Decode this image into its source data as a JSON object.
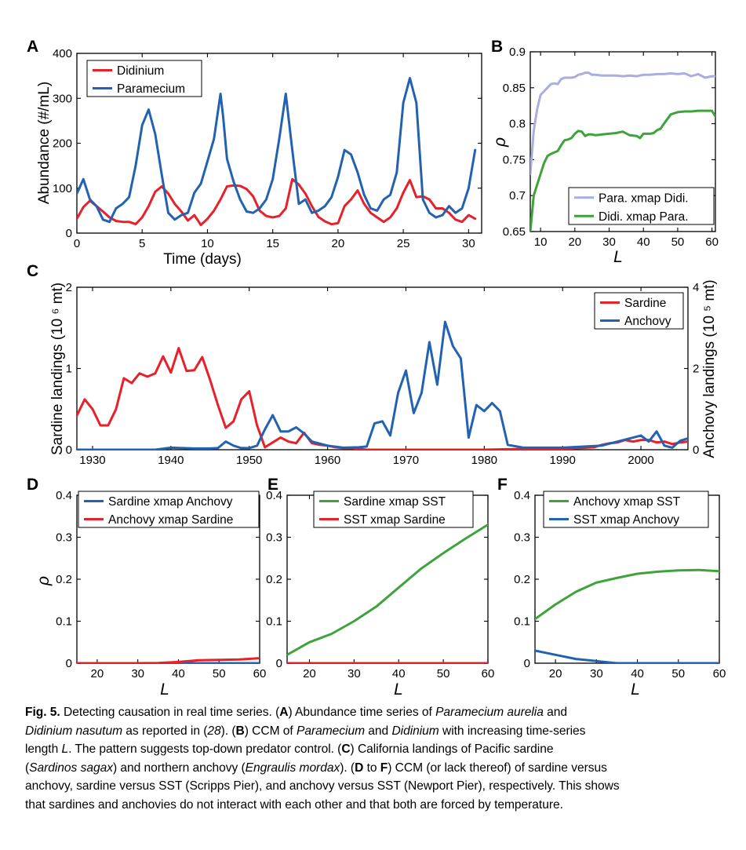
{
  "colors": {
    "red": "#e8202a",
    "blue": "#2262b0",
    "green": "#3ea33a",
    "lavender": "#a9aee0"
  },
  "chart_data": [
    {
      "id": "A",
      "panel_label": "A",
      "type": "line",
      "xlabel": "Time (days)",
      "ylabel": "Abundance (#/mL)",
      "xlim": [
        0,
        31
      ],
      "ylim": [
        0,
        400
      ],
      "xticks": [
        0,
        5,
        10,
        15,
        20,
        25,
        30
      ],
      "yticks": [
        0,
        100,
        200,
        300,
        400
      ],
      "legend_position": "top-left",
      "series": [
        {
          "name": "Didinium",
          "color": "red",
          "x": [
            0,
            0.5,
            1,
            1.5,
            2,
            2.5,
            3,
            3.5,
            4,
            4.5,
            5,
            5.5,
            6,
            6.5,
            7,
            7.5,
            8,
            8.5,
            9,
            9.5,
            10,
            10.5,
            11,
            11.5,
            12,
            12.5,
            13,
            13.5,
            14,
            14.5,
            15,
            15.5,
            16,
            16.5,
            17,
            17.5,
            18,
            18.5,
            19,
            19.5,
            20,
            20.5,
            21,
            21.5,
            22,
            22.5,
            23,
            23.5,
            24,
            24.5,
            25,
            25.5,
            26,
            26.5,
            27,
            27.5,
            28,
            28.5,
            29,
            29.5,
            30,
            30.5
          ],
          "values": [
            32,
            58,
            72,
            60,
            48,
            35,
            27,
            25,
            25,
            20,
            35,
            60,
            92,
            104,
            88,
            65,
            48,
            28,
            40,
            18,
            32,
            50,
            75,
            104,
            106,
            105,
            98,
            82,
            50,
            38,
            35,
            38,
            55,
            120,
            108,
            88,
            60,
            36,
            26,
            20,
            22,
            60,
            75,
            95,
            65,
            45,
            35,
            25,
            35,
            55,
            90,
            118,
            80,
            82,
            75,
            55,
            55,
            45,
            30,
            25,
            40,
            32
          ]
        },
        {
          "name": "Paramecium",
          "color": "blue",
          "x": [
            0,
            0.5,
            1,
            1.5,
            2,
            2.5,
            3,
            3.5,
            4,
            4.5,
            5,
            5.5,
            6,
            6.5,
            7,
            7.5,
            8,
            8.5,
            9,
            9.5,
            10,
            10.5,
            11,
            11.2,
            11.5,
            12,
            12.5,
            13,
            13.5,
            14,
            14.5,
            15,
            15.5,
            16,
            16.5,
            17,
            17.5,
            18,
            18.5,
            19,
            19.5,
            20,
            20.5,
            21,
            21.5,
            22,
            22.5,
            23,
            23.5,
            24,
            24.5,
            25,
            25.5,
            26,
            26.5,
            27,
            27.5,
            28,
            28.5,
            29,
            29.5,
            30,
            30.5
          ],
          "values": [
            88,
            120,
            75,
            60,
            30,
            25,
            55,
            65,
            80,
            150,
            240,
            275,
            220,
            130,
            45,
            30,
            40,
            45,
            90,
            110,
            160,
            210,
            310,
            260,
            165,
            115,
            75,
            48,
            45,
            55,
            75,
            120,
            210,
            310,
            185,
            65,
            75,
            45,
            50,
            60,
            80,
            125,
            185,
            175,
            135,
            85,
            55,
            50,
            75,
            85,
            135,
            290,
            345,
            290,
            75,
            45,
            35,
            40,
            60,
            45,
            55,
            100,
            185
          ]
        }
      ]
    },
    {
      "id": "B",
      "panel_label": "B",
      "type": "line",
      "xlabel": "L",
      "ylabel": "ρ",
      "xlim": [
        7,
        61
      ],
      "ylim": [
        0.65,
        0.9
      ],
      "xticks": [
        10,
        20,
        30,
        40,
        50,
        60
      ],
      "yticks": [
        0.65,
        0.7,
        0.75,
        0.8,
        0.85,
        0.9
      ],
      "ytick_labels": [
        "0.65",
        "0.7",
        "0.75",
        "0.8",
        "0.85",
        "0.9"
      ],
      "legend_position": "bottom-right",
      "series": [
        {
          "name": "Para. xmap Didi.",
          "color": "lavender",
          "x": [
            7,
            8,
            9,
            10,
            11,
            12,
            13,
            14,
            15,
            16,
            17,
            18,
            19,
            20,
            21,
            22,
            23,
            24,
            25,
            26,
            28,
            30,
            32,
            34,
            36,
            38,
            40,
            42,
            44,
            46,
            48,
            50,
            52,
            54,
            56,
            58,
            60,
            61
          ],
          "values": [
            0.73,
            0.79,
            0.82,
            0.84,
            0.845,
            0.85,
            0.855,
            0.856,
            0.855,
            0.862,
            0.864,
            0.864,
            0.864,
            0.865,
            0.868,
            0.869,
            0.871,
            0.871,
            0.868,
            0.868,
            0.867,
            0.867,
            0.867,
            0.866,
            0.867,
            0.866,
            0.868,
            0.868,
            0.869,
            0.869,
            0.87,
            0.869,
            0.87,
            0.866,
            0.869,
            0.864,
            0.866,
            0.866
          ]
        },
        {
          "name": "Didi. xmap Para.",
          "color": "green",
          "x": [
            7,
            8,
            9,
            10,
            11,
            12,
            13,
            14,
            15,
            16,
            17,
            18,
            19,
            20,
            21,
            22,
            23,
            24,
            25,
            26,
            28,
            30,
            32,
            34,
            36,
            38,
            39,
            40,
            41,
            42,
            43,
            44,
            45,
            46,
            48,
            50,
            52,
            54,
            56,
            58,
            60,
            61
          ],
          "values": [
            0.65,
            0.7,
            0.715,
            0.73,
            0.745,
            0.755,
            0.758,
            0.76,
            0.762,
            0.77,
            0.777,
            0.778,
            0.78,
            0.786,
            0.79,
            0.789,
            0.783,
            0.785,
            0.785,
            0.784,
            0.785,
            0.786,
            0.787,
            0.789,
            0.784,
            0.783,
            0.78,
            0.786,
            0.786,
            0.786,
            0.787,
            0.791,
            0.793,
            0.8,
            0.813,
            0.816,
            0.817,
            0.817,
            0.818,
            0.818,
            0.818,
            0.81
          ]
        }
      ]
    },
    {
      "id": "C",
      "panel_label": "C",
      "type": "line",
      "xlabel": "",
      "ylabel": "Sardine landings (10 ⁶ mt)",
      "ylabel_right": "Anchovy landings (10 ⁵ mt)",
      "xlim": [
        1928,
        2006
      ],
      "ylim": [
        0,
        2
      ],
      "ylim_right": [
        0,
        4
      ],
      "xticks": [
        1930,
        1940,
        1950,
        1960,
        1970,
        1980,
        1990,
        2000
      ],
      "yticks": [
        0,
        1,
        2
      ],
      "yticks_right": [
        0,
        2,
        4
      ],
      "legend_position": "top-right",
      "series": [
        {
          "name": "Sardine",
          "color": "red",
          "axis": "left",
          "x": [
            1928,
            1929,
            1930,
            1931,
            1932,
            1933,
            1934,
            1935,
            1936,
            1937,
            1938,
            1939,
            1940,
            1941,
            1942,
            1943,
            1944,
            1945,
            1946,
            1947,
            1948,
            1949,
            1950,
            1951,
            1952,
            1953,
            1954,
            1955,
            1956,
            1957,
            1958,
            1959,
            1960,
            1961,
            1962,
            1963,
            1964,
            1965,
            1966,
            1967,
            1968,
            1969,
            1970,
            1972,
            1974,
            1976,
            1978,
            1980,
            1985,
            1990,
            1992,
            1994,
            1995,
            1996,
            1997,
            1998,
            1999,
            2000,
            2001,
            2002,
            2003,
            2004,
            2005,
            2006
          ],
          "values": [
            0.42,
            0.62,
            0.5,
            0.3,
            0.3,
            0.5,
            0.88,
            0.82,
            0.94,
            0.9,
            0.94,
            1.15,
            0.95,
            1.25,
            0.97,
            0.98,
            1.14,
            0.86,
            0.55,
            0.27,
            0.35,
            0.62,
            0.72,
            0.3,
            0.03,
            0.09,
            0.15,
            0.1,
            0.08,
            0.21,
            0.08,
            0.06,
            0.05,
            0.03,
            0.02,
            0.02,
            0.01,
            0.0,
            0.0,
            0.0,
            0.0,
            0.0,
            0.0,
            0.0,
            0.0,
            0.0,
            0.0,
            0.0,
            0.01,
            0.01,
            0.02,
            0.03,
            0.06,
            0.08,
            0.09,
            0.12,
            0.1,
            0.12,
            0.12,
            0.09,
            0.1,
            0.07,
            0.09,
            0.1
          ]
        },
        {
          "name": "Anchovy",
          "color": "blue",
          "axis": "right",
          "x": [
            1928,
            1935,
            1938,
            1940,
            1943,
            1945,
            1946,
            1947,
            1948,
            1949,
            1950,
            1951,
            1952,
            1953,
            1954,
            1955,
            1956,
            1957,
            1958,
            1960,
            1962,
            1964,
            1965,
            1966,
            1967,
            1968,
            1969,
            1970,
            1971,
            1972,
            1973,
            1974,
            1975,
            1976,
            1977,
            1978,
            1979,
            1980,
            1981,
            1982,
            1983,
            1985,
            1990,
            1995,
            1998,
            2000,
            2001,
            2002,
            2003,
            2004,
            2005,
            2006
          ],
          "values": [
            0,
            0,
            0,
            0.05,
            0.03,
            0.03,
            0.04,
            0.2,
            0.1,
            0.04,
            0.04,
            0.1,
            0.5,
            0.85,
            0.45,
            0.45,
            0.55,
            0.4,
            0.2,
            0.1,
            0.05,
            0.06,
            0.08,
            0.65,
            0.7,
            0.35,
            1.4,
            1.95,
            0.9,
            1.4,
            2.65,
            1.6,
            3.15,
            2.55,
            2.25,
            0.3,
            1.1,
            0.95,
            1.15,
            0.95,
            0.12,
            0.05,
            0.05,
            0.1,
            0.25,
            0.35,
            0.2,
            0.45,
            0.1,
            0.05,
            0.22,
            0.28
          ]
        }
      ]
    },
    {
      "id": "D",
      "panel_label": "D",
      "type": "line",
      "xlabel": "L",
      "ylabel": "ρ",
      "xlim": [
        15,
        60
      ],
      "ylim": [
        0,
        0.4
      ],
      "xticks": [
        20,
        30,
        40,
        50,
        60
      ],
      "yticks": [
        0,
        0.1,
        0.2,
        0.3,
        0.4
      ],
      "ytick_labels": [
        "0",
        "0.1",
        "0.2",
        "0.3",
        "0.4"
      ],
      "legend_position": "top",
      "series": [
        {
          "name": "Sardine xmap Anchovy",
          "color": "blue",
          "x": [
            15,
            60
          ],
          "values": [
            0,
            0
          ]
        },
        {
          "name": "Anchovy xmap Sardine",
          "color": "red",
          "x": [
            15,
            20,
            25,
            30,
            35,
            40,
            45,
            50,
            55,
            60
          ],
          "values": [
            0,
            0,
            0,
            0,
            0.0005,
            0.003,
            0.007,
            0.008,
            0.009,
            0.012
          ]
        }
      ]
    },
    {
      "id": "E",
      "panel_label": "E",
      "type": "line",
      "xlabel": "L",
      "ylabel": "",
      "xlim": [
        15,
        60
      ],
      "ylim": [
        0,
        0.4
      ],
      "xticks": [
        20,
        30,
        40,
        50,
        60
      ],
      "yticks": [
        0,
        0.1,
        0.2,
        0.3,
        0.4
      ],
      "ytick_labels": [
        "0",
        "0.1",
        "0.2",
        "0.3",
        "0.4"
      ],
      "legend_position": "top",
      "series": [
        {
          "name": "Sardine xmap SST",
          "color": "green",
          "x": [
            15,
            20,
            25,
            30,
            35,
            40,
            45,
            50,
            55,
            60
          ],
          "values": [
            0.02,
            0.05,
            0.07,
            0.1,
            0.135,
            0.18,
            0.225,
            0.262,
            0.297,
            0.33
          ]
        },
        {
          "name": "SST xmap Sardine",
          "color": "red",
          "x": [
            15,
            60
          ],
          "values": [
            0,
            0
          ]
        }
      ]
    },
    {
      "id": "F",
      "panel_label": "F",
      "type": "line",
      "xlabel": "L",
      "ylabel": "",
      "xlim": [
        15,
        60
      ],
      "ylim": [
        0,
        0.4
      ],
      "xticks": [
        20,
        30,
        40,
        50,
        60
      ],
      "yticks": [
        0,
        0.1,
        0.2,
        0.3,
        0.4
      ],
      "ytick_labels": [
        "0",
        "0.1",
        "0.2",
        "0.3",
        "0.4"
      ],
      "legend_position": "top",
      "series": [
        {
          "name": "Anchovy xmap SST",
          "color": "green",
          "x": [
            15,
            20,
            25,
            30,
            35,
            40,
            45,
            50,
            55,
            60
          ],
          "values": [
            0.105,
            0.14,
            0.17,
            0.192,
            0.203,
            0.213,
            0.218,
            0.221,
            0.222,
            0.219
          ]
        },
        {
          "name": "SST xmap Anchovy",
          "color": "blue",
          "x": [
            15,
            20,
            25,
            30,
            35,
            40,
            45,
            50,
            55,
            60
          ],
          "values": [
            0.03,
            0.02,
            0.01,
            0.005,
            0.0,
            0.0,
            0.0,
            0.0,
            0.0,
            0.0
          ]
        }
      ]
    }
  ],
  "caption": {
    "lines": [
      [
        {
          "b": "Fig. 5."
        },
        {
          "t": " Detecting causation in real time series. ("
        },
        {
          "b": "A"
        },
        {
          "t": ") Abundance time series of "
        },
        {
          "i": "Paramecium aurelia"
        },
        {
          "t": " and"
        }
      ],
      [
        {
          "i": "Didinium nasutum"
        },
        {
          "t": " as reported in ("
        },
        {
          "i": "28"
        },
        {
          "t": "). ("
        },
        {
          "b": "B"
        },
        {
          "t": ") CCM of "
        },
        {
          "i": "Paramecium"
        },
        {
          "t": " and "
        },
        {
          "i": "Didinium"
        },
        {
          "t": " with increasing time-series"
        }
      ],
      [
        {
          "t": "length "
        },
        {
          "i": "L"
        },
        {
          "t": ". The pattern suggests top-down predator control. ("
        },
        {
          "b": "C"
        },
        {
          "t": ") California landings of Pacific sardine"
        }
      ],
      [
        {
          "t": "("
        },
        {
          "i": "Sardinos sagax"
        },
        {
          "t": ") and northern anchovy ("
        },
        {
          "i": "Engraulis mordax"
        },
        {
          "t": "). ("
        },
        {
          "b": "D"
        },
        {
          "t": " to "
        },
        {
          "b": "F"
        },
        {
          "t": ") CCM (or lack thereof) of sardine versus"
        }
      ],
      [
        {
          "t": "anchovy, sardine versus SST (Scripps Pier), and anchovy versus SST (Newport Pier), respectively. This shows"
        }
      ],
      [
        {
          "t": "that sardines and anchovies do not interact with each other and that both are forced by temperature."
        }
      ]
    ]
  }
}
